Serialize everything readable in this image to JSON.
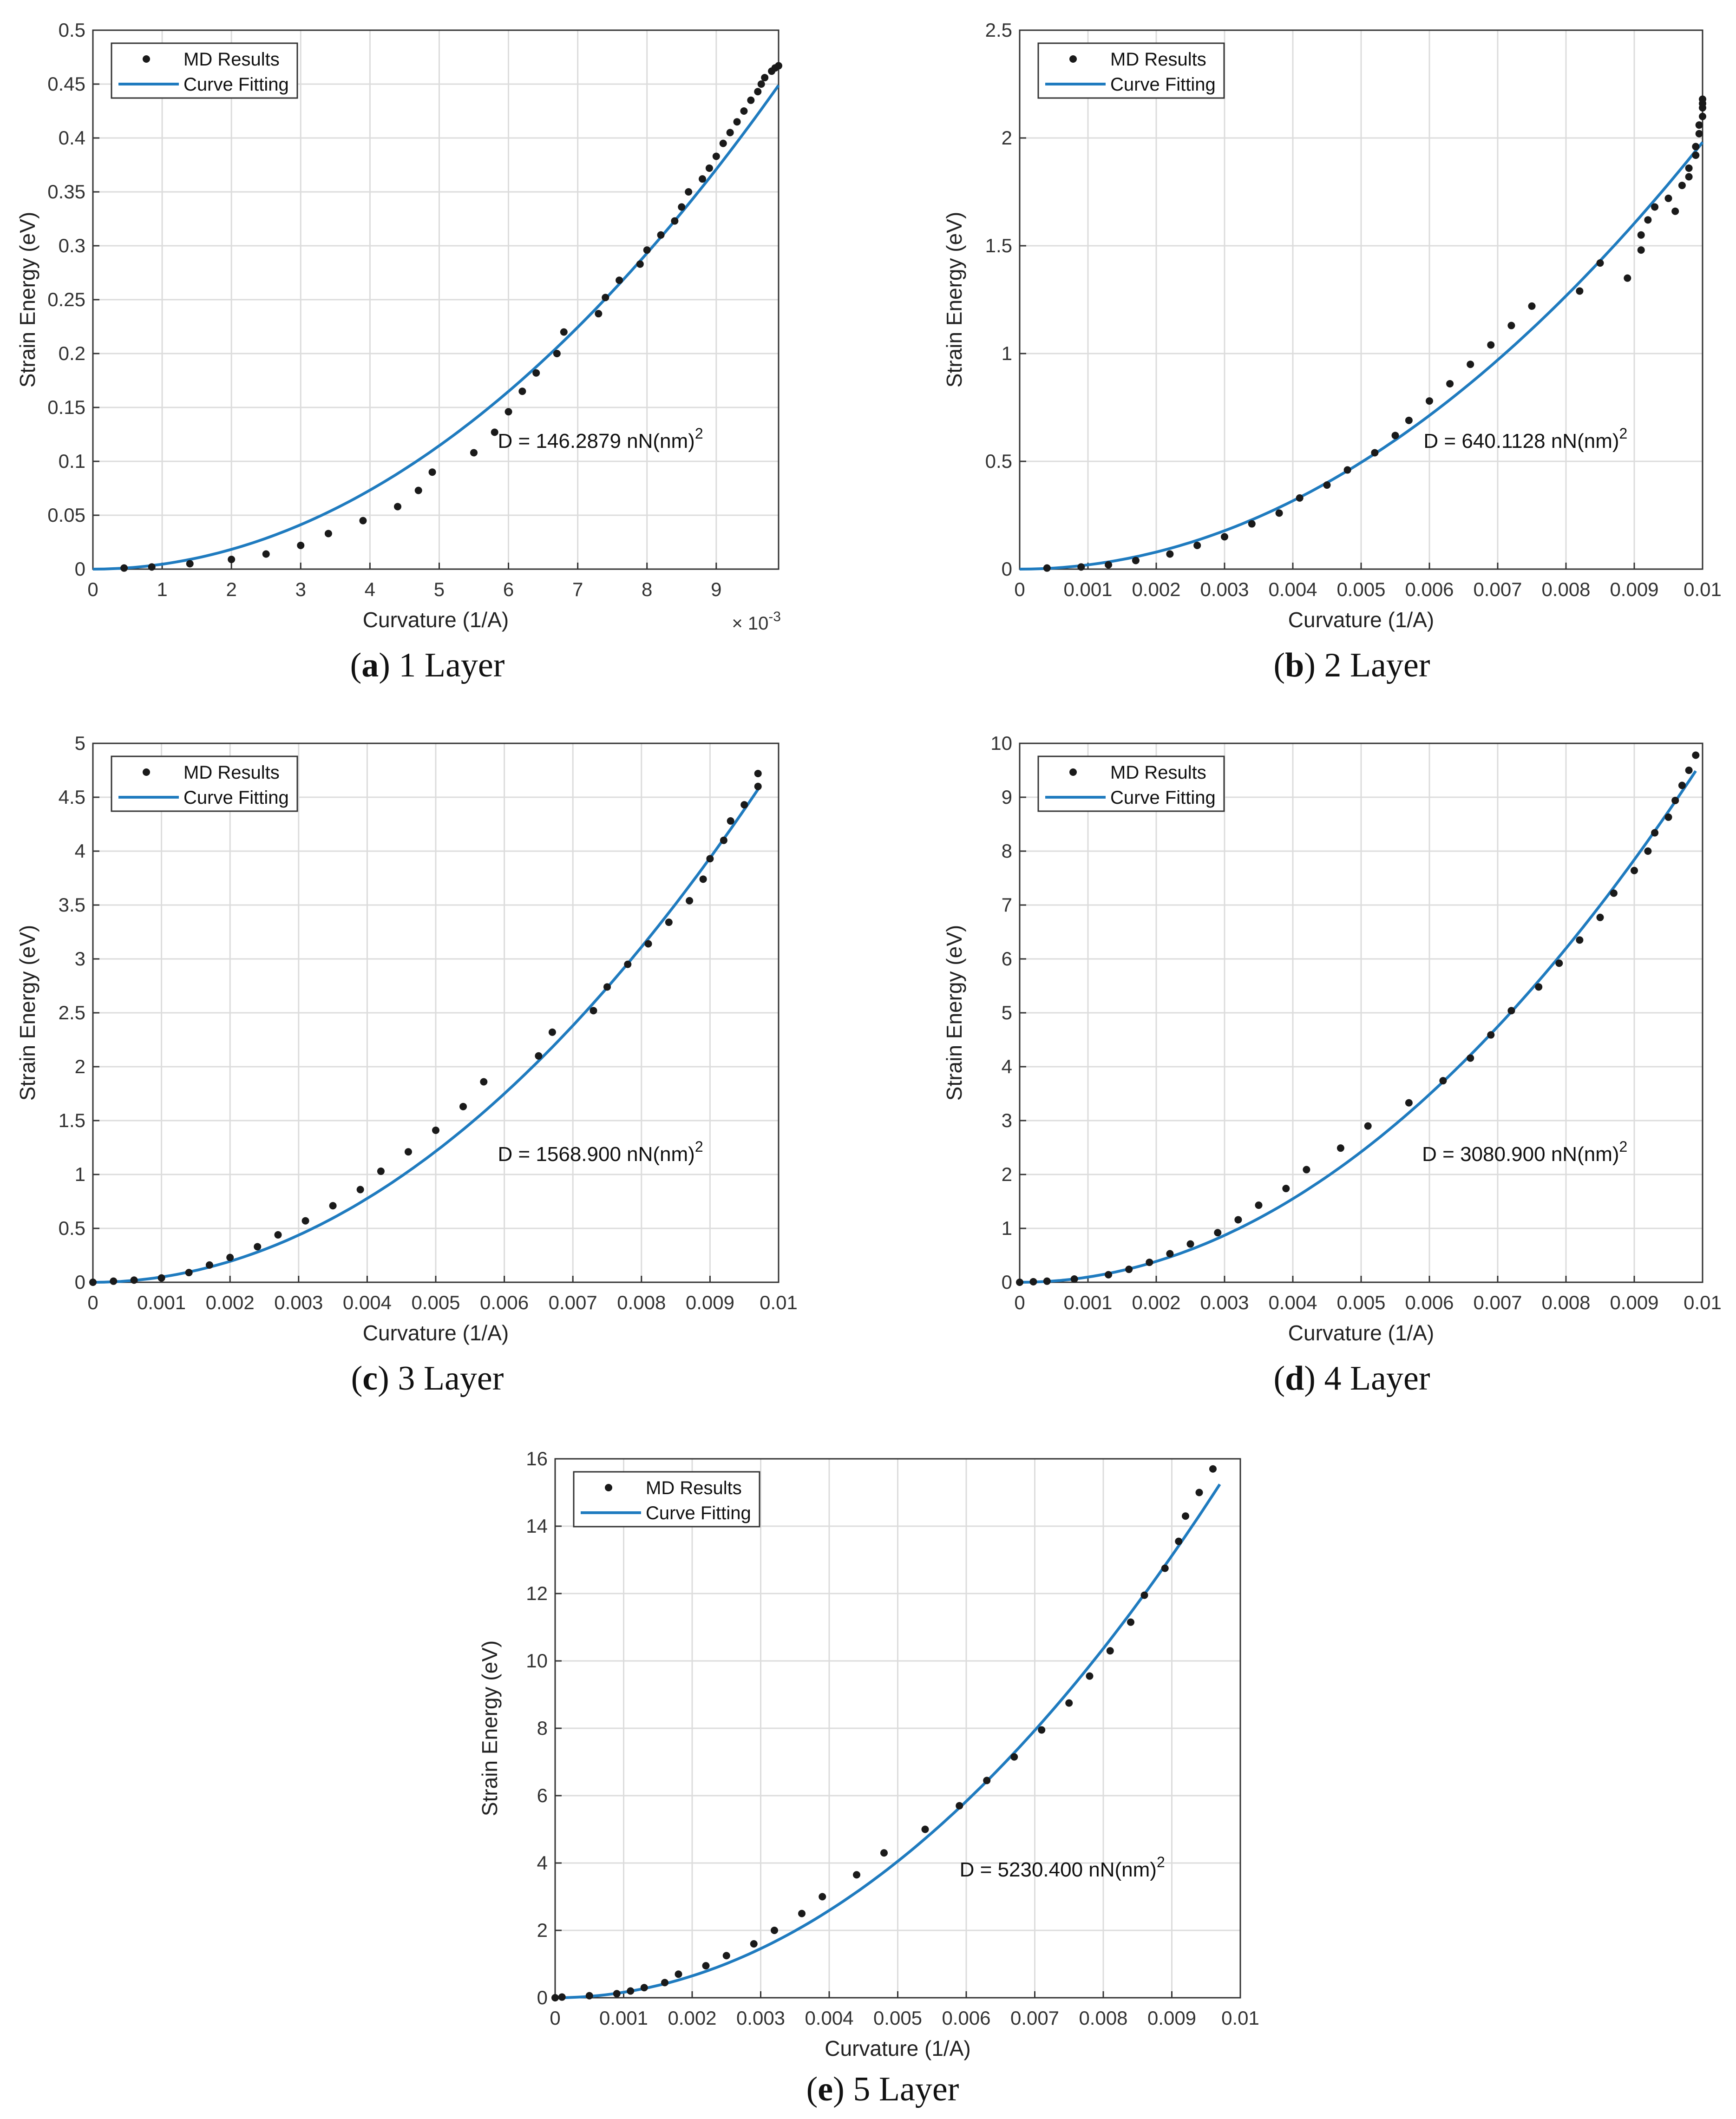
{
  "colors": {
    "fit_line": "#1f7bbf",
    "markers": "#1a1a1a",
    "grid": "#dcdcdc",
    "axis": "#333333"
  },
  "chart_data": [
    {
      "id": "a",
      "type": "scatter",
      "caption_letter": "a",
      "caption_text": " 1 Layer",
      "xlabel": "Curvature (1/A)",
      "ylabel": "Strain Energy (eV)",
      "xlim": [
        0,
        0.0099
      ],
      "ylim": [
        0,
        0.5
      ],
      "xticks": [
        0,
        0.001,
        0.002,
        0.003,
        0.004,
        0.005,
        0.006,
        0.007,
        0.008,
        0.009
      ],
      "xticklabels": [
        "0",
        "1",
        "2",
        "3",
        "4",
        "5",
        "6",
        "7",
        "8",
        "9"
      ],
      "yticks": [
        0,
        0.05,
        0.1,
        0.15,
        0.2,
        0.25,
        0.3,
        0.35,
        0.4,
        0.45,
        0.5
      ],
      "yticklabels": [
        "0",
        "0.05",
        "0.1",
        "0.15",
        "0.2",
        "0.25",
        "0.3",
        "0.35",
        "0.4",
        "0.45",
        "0.5"
      ],
      "x_exponent_label": "× 10",
      "x_exponent_power": "-3",
      "grid": true,
      "legend": {
        "position": "top-left",
        "entries": [
          "MD Results",
          "Curve Fitting"
        ]
      },
      "annotation": {
        "text": "D = 146.2879 nN(nm)",
        "superscript": "2"
      },
      "fit": {
        "a": 4580,
        "x_end": 0.0099
      },
      "series": [
        {
          "name": "MD Results",
          "x": [
            0.00045,
            0.00085,
            0.0014,
            0.002,
            0.0025,
            0.003,
            0.0034,
            0.0039,
            0.0044,
            0.0047,
            0.0049,
            0.0055,
            0.0058,
            0.006,
            0.0062,
            0.0064,
            0.0067,
            0.0068,
            0.0073,
            0.0074,
            0.0076,
            0.0079,
            0.008,
            0.0082,
            0.0084,
            0.0085,
            0.0086,
            0.0088,
            0.0089,
            0.009,
            0.0091,
            0.0092,
            0.0093,
            0.0094,
            0.0095,
            0.0096,
            0.00965,
            0.0097,
            0.0098,
            0.00985,
            0.0099
          ],
          "y": [
            0.001,
            0.002,
            0.005,
            0.009,
            0.014,
            0.022,
            0.033,
            0.045,
            0.058,
            0.073,
            0.09,
            0.108,
            0.127,
            0.146,
            0.165,
            0.182,
            0.2,
            0.22,
            0.237,
            0.252,
            0.268,
            0.283,
            0.296,
            0.31,
            0.323,
            0.336,
            0.35,
            0.362,
            0.372,
            0.383,
            0.395,
            0.405,
            0.415,
            0.425,
            0.435,
            0.443,
            0.45,
            0.456,
            0.462,
            0.465,
            0.467
          ]
        }
      ]
    },
    {
      "id": "b",
      "type": "scatter",
      "caption_letter": "b",
      "caption_text": " 2 Layer",
      "xlabel": "Curvature (1/A)",
      "ylabel": "Strain Energy (eV)",
      "xlim": [
        0,
        0.01
      ],
      "ylim": [
        0,
        2.5
      ],
      "xticks": [
        0,
        0.001,
        0.002,
        0.003,
        0.004,
        0.005,
        0.006,
        0.007,
        0.008,
        0.009,
        0.01
      ],
      "xticklabels": [
        "0",
        "0.001",
        "0.002",
        "0.003",
        "0.004",
        "0.005",
        "0.006",
        "0.007",
        "0.008",
        "0.009",
        "0.01"
      ],
      "yticks": [
        0,
        0.5,
        1,
        1.5,
        2,
        2.5
      ],
      "yticklabels": [
        "0",
        "0.5",
        "1",
        "1.5",
        "2",
        "2.5"
      ],
      "grid": true,
      "legend": {
        "position": "top-left",
        "entries": [
          "MD Results",
          "Curve Fitting"
        ]
      },
      "annotation": {
        "text": "D = 640.1128 nN(nm)",
        "superscript": "2"
      },
      "fit": {
        "a": 19800,
        "x_end": 0.01
      },
      "series": [
        {
          "name": "MD Results",
          "x": [
            0.0004,
            0.0009,
            0.0013,
            0.0017,
            0.0022,
            0.0026,
            0.003,
            0.0034,
            0.0038,
            0.0041,
            0.0045,
            0.0048,
            0.0052,
            0.0055,
            0.0057,
            0.006,
            0.0063,
            0.0066,
            0.0069,
            0.0072,
            0.0075,
            0.0082,
            0.0085,
            0.0089,
            0.0091,
            0.0091,
            0.0092,
            0.0093,
            0.0095,
            0.0096,
            0.0097,
            0.0098,
            0.0098,
            0.0099,
            0.0099,
            0.00995,
            0.00995,
            0.01,
            0.01,
            0.01,
            0.01
          ],
          "y": [
            0.005,
            0.01,
            0.02,
            0.04,
            0.07,
            0.11,
            0.15,
            0.21,
            0.26,
            0.33,
            0.39,
            0.46,
            0.54,
            0.62,
            0.69,
            0.78,
            0.86,
            0.95,
            1.04,
            1.13,
            1.22,
            1.29,
            1.42,
            1.35,
            1.48,
            1.55,
            1.62,
            1.68,
            1.72,
            1.66,
            1.78,
            1.82,
            1.86,
            1.92,
            1.96,
            2.02,
            2.06,
            2.1,
            2.14,
            2.16,
            2.18
          ]
        }
      ]
    },
    {
      "id": "c",
      "type": "scatter",
      "caption_letter": "c",
      "caption_text": " 3 Layer",
      "xlabel": "Curvature (1/A)",
      "ylabel": "Strain Energy (eV)",
      "xlim": [
        0,
        0.01
      ],
      "ylim": [
        0,
        5
      ],
      "xticks": [
        0,
        0.001,
        0.002,
        0.003,
        0.004,
        0.005,
        0.006,
        0.007,
        0.008,
        0.009,
        0.01
      ],
      "xticklabels": [
        "0",
        "0.001",
        "0.002",
        "0.003",
        "0.004",
        "0.005",
        "0.006",
        "0.007",
        "0.008",
        "0.009",
        "0.01"
      ],
      "yticks": [
        0,
        0.5,
        1,
        1.5,
        2,
        2.5,
        3,
        3.5,
        4,
        4.5,
        5
      ],
      "yticklabels": [
        "0",
        "0.5",
        "1",
        "1.5",
        "2",
        "2.5",
        "3",
        "3.5",
        "4",
        "4.5",
        "5"
      ],
      "grid": true,
      "legend": {
        "position": "top-left",
        "entries": [
          "MD Results",
          "Curve Fitting"
        ]
      },
      "annotation": {
        "text": "D = 1568.900 nN(nm)",
        "superscript": "2"
      },
      "fit": {
        "a": 48600,
        "x_end": 0.0097
      },
      "series": [
        {
          "name": "MD Results",
          "x": [
            0.0,
            0.0003,
            0.0006,
            0.001,
            0.0014,
            0.0017,
            0.002,
            0.0024,
            0.0027,
            0.0031,
            0.0035,
            0.0039,
            0.0042,
            0.0046,
            0.005,
            0.0054,
            0.0057,
            0.0065,
            0.0067,
            0.0073,
            0.0075,
            0.0078,
            0.0081,
            0.0084,
            0.0087,
            0.0089,
            0.009,
            0.0092,
            0.0093,
            0.0095,
            0.0097,
            0.0097
          ],
          "y": [
            0.0,
            0.01,
            0.02,
            0.04,
            0.09,
            0.16,
            0.23,
            0.33,
            0.44,
            0.57,
            0.71,
            0.86,
            1.03,
            1.21,
            1.41,
            1.63,
            1.86,
            2.1,
            2.32,
            2.52,
            2.74,
            2.95,
            3.14,
            3.34,
            3.54,
            3.74,
            3.93,
            4.1,
            4.28,
            4.43,
            4.6,
            4.72
          ]
        }
      ]
    },
    {
      "id": "d",
      "type": "scatter",
      "caption_letter": "d",
      "caption_text": " 4 Layer",
      "xlabel": "Curvature (1/A)",
      "ylabel": "Strain Energy (eV)",
      "xlim": [
        0,
        0.01
      ],
      "ylim": [
        0,
        10
      ],
      "xticks": [
        0,
        0.001,
        0.002,
        0.003,
        0.004,
        0.005,
        0.006,
        0.007,
        0.008,
        0.009,
        0.01
      ],
      "xticklabels": [
        "0",
        "0.001",
        "0.002",
        "0.003",
        "0.004",
        "0.005",
        "0.006",
        "0.007",
        "0.008",
        "0.009",
        "0.01"
      ],
      "yticks": [
        0,
        1,
        2,
        3,
        4,
        5,
        6,
        7,
        8,
        9,
        10
      ],
      "yticklabels": [
        "0",
        "1",
        "2",
        "3",
        "4",
        "5",
        "6",
        "7",
        "8",
        "9",
        "10"
      ],
      "grid": true,
      "legend": {
        "position": "top-left",
        "entries": [
          "MD Results",
          "Curve Fitting"
        ]
      },
      "annotation": {
        "text": "D = 3080.900 nN(nm)",
        "superscript": "2"
      },
      "fit": {
        "a": 96800,
        "x_end": 0.0099
      },
      "series": [
        {
          "name": "MD Results",
          "x": [
            0.0,
            0.0002,
            0.0004,
            0.0008,
            0.0013,
            0.0016,
            0.0019,
            0.0022,
            0.0025,
            0.0029,
            0.0032,
            0.0035,
            0.0039,
            0.0042,
            0.0047,
            0.0051,
            0.0057,
            0.0062,
            0.0066,
            0.0069,
            0.0072,
            0.0076,
            0.0079,
            0.0082,
            0.0085,
            0.0087,
            0.009,
            0.0092,
            0.0093,
            0.0095,
            0.0096,
            0.0097,
            0.0098,
            0.0099
          ],
          "y": [
            0.0,
            0.01,
            0.02,
            0.06,
            0.14,
            0.24,
            0.37,
            0.53,
            0.71,
            0.92,
            1.16,
            1.43,
            1.74,
            2.09,
            2.49,
            2.9,
            3.33,
            3.74,
            4.16,
            4.59,
            5.04,
            5.48,
            5.92,
            6.35,
            6.77,
            7.22,
            7.64,
            8.0,
            8.34,
            8.63,
            8.94,
            9.22,
            9.5,
            9.78
          ]
        }
      ]
    },
    {
      "id": "e",
      "type": "scatter",
      "caption_letter": "e",
      "caption_text": " 5 Layer",
      "xlabel": "Curvature (1/A)",
      "ylabel": "Strain Energy (eV)",
      "xlim": [
        0,
        0.01
      ],
      "ylim": [
        0,
        16
      ],
      "xticks": [
        0,
        0.001,
        0.002,
        0.003,
        0.004,
        0.005,
        0.006,
        0.007,
        0.008,
        0.009,
        0.01
      ],
      "xticklabels": [
        "0",
        "0.001",
        "0.002",
        "0.003",
        "0.004",
        "0.005",
        "0.006",
        "0.007",
        "0.008",
        "0.009",
        "0.01"
      ],
      "yticks": [
        0,
        2,
        4,
        6,
        8,
        10,
        12,
        14,
        16
      ],
      "yticklabels": [
        "0",
        "2",
        "4",
        "6",
        "8",
        "10",
        "12",
        "14",
        "16"
      ],
      "grid": true,
      "legend": {
        "position": "top-left",
        "entries": [
          "MD Results",
          "Curve Fitting"
        ]
      },
      "annotation": {
        "text": "D = 5230.400 nN(nm)",
        "superscript": "2"
      },
      "fit": {
        "a": 162000,
        "x_end": 0.0097
      },
      "series": [
        {
          "name": "MD Results",
          "x": [
            0.0,
            0.0001,
            0.0005,
            0.0009,
            0.0011,
            0.0013,
            0.0016,
            0.0018,
            0.0022,
            0.0025,
            0.0029,
            0.0032,
            0.0036,
            0.0039,
            0.0044,
            0.0048,
            0.0054,
            0.0059,
            0.0063,
            0.0067,
            0.0071,
            0.0075,
            0.0078,
            0.0081,
            0.0084,
            0.0086,
            0.0089,
            0.0091,
            0.0092,
            0.0094,
            0.0096
          ],
          "y": [
            0.0,
            0.02,
            0.06,
            0.12,
            0.2,
            0.3,
            0.45,
            0.7,
            0.95,
            1.25,
            1.6,
            2.0,
            2.5,
            3.0,
            3.65,
            4.3,
            5.0,
            5.7,
            6.45,
            7.15,
            7.95,
            8.75,
            9.55,
            10.3,
            11.15,
            11.95,
            12.75,
            13.55,
            14.3,
            15.0,
            15.7
          ]
        }
      ]
    }
  ]
}
